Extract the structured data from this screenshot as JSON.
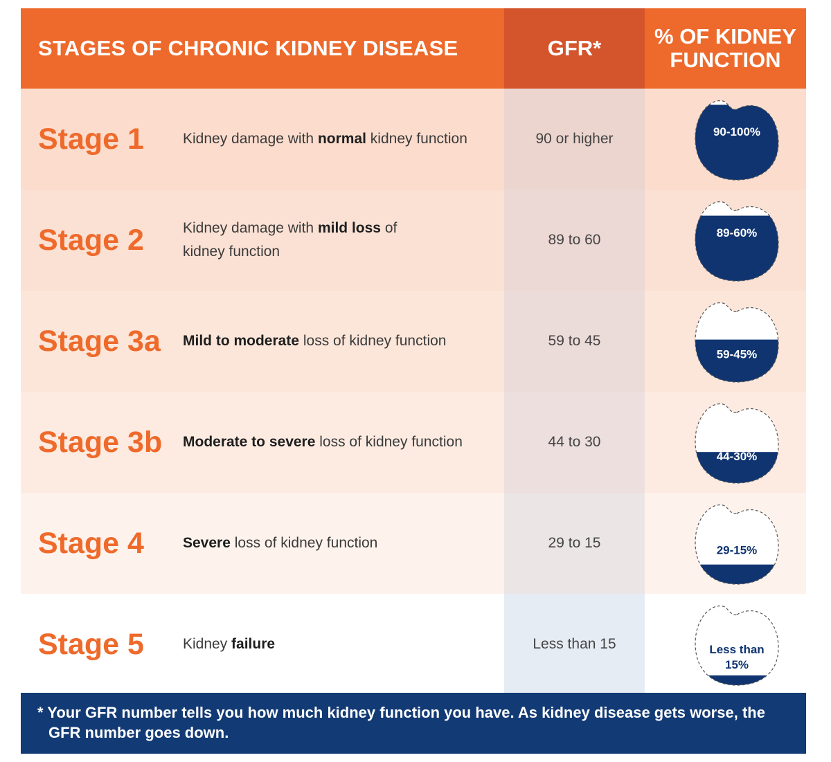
{
  "header": {
    "title": "STAGES OF CHRONIC KIDNEY DISEASE",
    "gfr": "GFR*",
    "pct_line1": "% OF KIDNEY",
    "pct_line2": "FUNCTION"
  },
  "colors": {
    "header_orange": "#ed6a2c",
    "header_gfr": "#d4552b",
    "stage_text": "#ee6a2b",
    "navy": "#123a74",
    "kidney_fill": "#0f3470"
  },
  "stages": [
    {
      "label": "Stage 1",
      "desc_pre": "Kidney damage with ",
      "desc_bold": "normal",
      "desc_post": " kidney function",
      "gfr": "90 or higher",
      "pct": "90-100%",
      "pct_line2": "",
      "fill_level": 0.92
    },
    {
      "label": "Stage 2",
      "desc_pre": "Kidney damage with ",
      "desc_bold": "mild loss",
      "desc_post": " of kidney function",
      "gfr": "89 to 60",
      "pct": "89-60%",
      "pct_line2": "",
      "fill_level": 0.8
    },
    {
      "label": "Stage 3a",
      "desc_pre": "",
      "desc_bold": "Mild to moderate",
      "desc_post": " loss of kidney function",
      "gfr": "59 to 45",
      "pct": "59-45%",
      "pct_line2": "",
      "fill_level": 0.52
    },
    {
      "label": "Stage 3b",
      "desc_pre": "",
      "desc_bold": "Moderate to severe",
      "desc_post": " loss of kidney function",
      "gfr": "44 to 30",
      "pct": "44-30%",
      "pct_line2": "",
      "fill_level": 0.38
    },
    {
      "label": "Stage 4",
      "desc_pre": "",
      "desc_bold": "Severe",
      "desc_post": " loss of kidney function",
      "gfr": "29 to 15",
      "pct": "29-15%",
      "pct_line2": "",
      "fill_level": 0.24
    },
    {
      "label": "Stage 5",
      "desc_pre": "Kidney ",
      "desc_bold": "failure",
      "desc_post": "",
      "gfr": "Less than 15",
      "pct": "Less than",
      "pct_line2": "15%",
      "fill_level": 0.12
    }
  ],
  "footer": "* Your GFR number tells you how much kidney function you have. As kidney disease gets worse, the GFR number goes down."
}
